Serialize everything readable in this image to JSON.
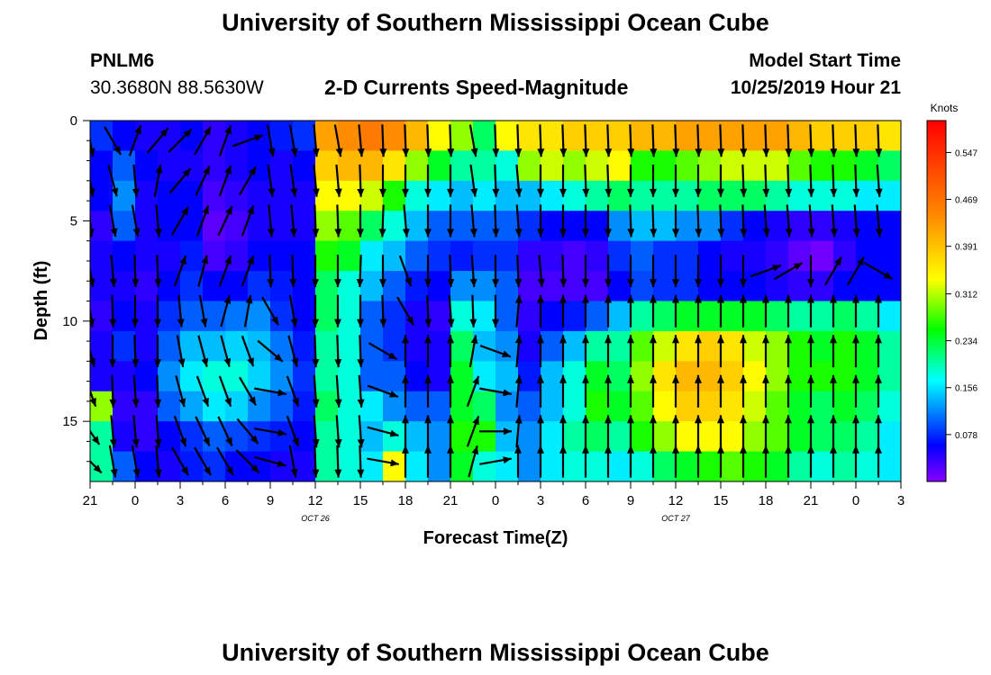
{
  "header": {
    "title": "University of Southern Mississippi Ocean Cube",
    "station": "PNLM6",
    "coords": "30.3680N 88.5630W",
    "plot_title": "2-D Currents Speed-Magnitude",
    "model_start_label": "Model Start Time",
    "model_start_value": "10/25/2019 Hour 21"
  },
  "footer": {
    "title": "University of Southern Mississippi Ocean Cube"
  },
  "chart_data": {
    "type": "heatmap",
    "title": "2-D Currents Speed-Magnitude",
    "xlabel": "Forecast Time(Z)",
    "ylabel": "Depth (ft)",
    "x_ticks": [
      "21",
      "0",
      "3",
      "6",
      "9",
      "12",
      "15",
      "18",
      "21",
      "0",
      "3",
      "6",
      "9",
      "12",
      "15",
      "18",
      "21",
      "0",
      "3"
    ],
    "x_hours": [
      0,
      3,
      6,
      9,
      12,
      15,
      18,
      21,
      24,
      27,
      30,
      33,
      36,
      39,
      42,
      45,
      48,
      51,
      54
    ],
    "x_range_hours": [
      0,
      54
    ],
    "date_labels": [
      {
        "text": "OCT 26",
        "hour": 15
      },
      {
        "text": "OCT 27",
        "hour": 39
      }
    ],
    "y_ticks": [
      "0",
      "5",
      "10",
      "15"
    ],
    "y_values": [
      0,
      5,
      10,
      15
    ],
    "y_range": [
      0,
      18
    ],
    "y_inverted": true,
    "colorbar": {
      "unit": "Knots",
      "ticks": [
        "0.547",
        "0.469",
        "0.391",
        "0.312",
        "0.234",
        "0.156",
        "0.078"
      ],
      "tick_values": [
        0.547,
        0.469,
        0.391,
        0.312,
        0.234,
        0.156,
        0.078
      ],
      "range": [
        0,
        0.6
      ],
      "colormap": [
        "#8800ff",
        "#0000ff",
        "#00ffff",
        "#00ff00",
        "#ffff00",
        "#ff8800",
        "#ff0000"
      ]
    },
    "grid_hours": [
      0,
      1.5,
      3,
      4.5,
      6,
      7.5,
      9,
      10.5,
      12,
      13.5,
      15,
      16.5,
      18,
      19.5,
      21,
      22.5,
      24,
      25.5,
      27,
      28.5,
      30,
      31.5,
      33,
      34.5,
      36,
      37.5,
      39,
      40.5,
      42,
      43.5,
      45,
      46.5,
      48,
      49.5,
      51,
      52.5
    ],
    "grid_depths": [
      0,
      1.5,
      3,
      4.5,
      6,
      7.5,
      9,
      10.5,
      12,
      13.5,
      15,
      16.5
    ],
    "speed_grid": [
      [
        0.08,
        0.06,
        0.06,
        0.04,
        0.05,
        0.05,
        0.04,
        0.05,
        0.05,
        0.3,
        0.2,
        0.2
      ],
      [
        0.06,
        0.1,
        0.12,
        0.1,
        0.06,
        0.05,
        0.06,
        0.08,
        0.05,
        0.04,
        0.05,
        0.1
      ],
      [
        0.05,
        0.06,
        0.05,
        0.05,
        0.05,
        0.04,
        0.05,
        0.05,
        0.06,
        0.04,
        0.04,
        0.06
      ],
      [
        0.05,
        0.05,
        0.06,
        0.06,
        0.05,
        0.06,
        0.08,
        0.1,
        0.12,
        0.1,
        0.06,
        0.05
      ],
      [
        0.06,
        0.05,
        0.06,
        0.06,
        0.07,
        0.08,
        0.1,
        0.14,
        0.16,
        0.13,
        0.08,
        0.07
      ],
      [
        0.04,
        0.04,
        0.03,
        0.02,
        0.03,
        0.06,
        0.1,
        0.14,
        0.18,
        0.16,
        0.1,
        0.08
      ],
      [
        0.05,
        0.05,
        0.04,
        0.03,
        0.04,
        0.06,
        0.11,
        0.15,
        0.18,
        0.15,
        0.09,
        0.06
      ],
      [
        0.06,
        0.06,
        0.05,
        0.05,
        0.06,
        0.08,
        0.12,
        0.14,
        0.15,
        0.12,
        0.08,
        0.06
      ],
      [
        0.07,
        0.05,
        0.05,
        0.05,
        0.06,
        0.07,
        0.08,
        0.11,
        0.12,
        0.1,
        0.07,
        0.05
      ],
      [
        0.08,
        0.06,
        0.05,
        0.05,
        0.06,
        0.06,
        0.06,
        0.07,
        0.08,
        0.07,
        0.06,
        0.05
      ],
      [
        0.42,
        0.38,
        0.34,
        0.3,
        0.26,
        0.22,
        0.22,
        0.2,
        0.2,
        0.22,
        0.2,
        0.2
      ],
      [
        0.44,
        0.4,
        0.34,
        0.28,
        0.24,
        0.18,
        0.18,
        0.18,
        0.18,
        0.18,
        0.18,
        0.18
      ],
      [
        0.46,
        0.4,
        0.32,
        0.22,
        0.16,
        0.14,
        0.1,
        0.1,
        0.1,
        0.16,
        0.14,
        0.16
      ],
      [
        0.44,
        0.36,
        0.26,
        0.18,
        0.14,
        0.1,
        0.08,
        0.08,
        0.1,
        0.12,
        0.18,
        0.34
      ],
      [
        0.4,
        0.3,
        0.18,
        0.14,
        0.1,
        0.07,
        0.05,
        0.05,
        0.06,
        0.1,
        0.14,
        0.16
      ],
      [
        0.34,
        0.24,
        0.16,
        0.1,
        0.08,
        0.06,
        0.04,
        0.05,
        0.05,
        0.1,
        0.12,
        0.12
      ],
      [
        0.3,
        0.2,
        0.14,
        0.1,
        0.07,
        0.12,
        0.18,
        0.22,
        0.24,
        0.24,
        0.26,
        0.24
      ],
      [
        0.22,
        0.2,
        0.16,
        0.1,
        0.08,
        0.12,
        0.16,
        0.14,
        0.16,
        0.22,
        0.26,
        0.18
      ],
      [
        0.34,
        0.18,
        0.14,
        0.1,
        0.08,
        0.1,
        0.1,
        0.12,
        0.14,
        0.12,
        0.14,
        0.16
      ],
      [
        0.36,
        0.3,
        0.14,
        0.08,
        0.04,
        0.03,
        0.04,
        0.05,
        0.07,
        0.1,
        0.12,
        0.12
      ],
      [
        0.36,
        0.32,
        0.16,
        0.06,
        0.04,
        0.03,
        0.06,
        0.1,
        0.14,
        0.14,
        0.16,
        0.16
      ],
      [
        0.38,
        0.3,
        0.18,
        0.06,
        0.03,
        0.03,
        0.07,
        0.14,
        0.18,
        0.18,
        0.2,
        0.18
      ],
      [
        0.38,
        0.32,
        0.2,
        0.06,
        0.04,
        0.03,
        0.1,
        0.2,
        0.24,
        0.26,
        0.22,
        0.18
      ],
      [
        0.38,
        0.34,
        0.22,
        0.12,
        0.08,
        0.06,
        0.14,
        0.2,
        0.22,
        0.24,
        0.2,
        0.16
      ],
      [
        0.4,
        0.26,
        0.2,
        0.14,
        0.1,
        0.09,
        0.2,
        0.28,
        0.3,
        0.28,
        0.26,
        0.18
      ],
      [
        0.4,
        0.26,
        0.2,
        0.14,
        0.08,
        0.08,
        0.22,
        0.32,
        0.36,
        0.34,
        0.3,
        0.22
      ],
      [
        0.42,
        0.28,
        0.2,
        0.12,
        0.08,
        0.08,
        0.24,
        0.36,
        0.4,
        0.38,
        0.34,
        0.24
      ],
      [
        0.42,
        0.3,
        0.22,
        0.12,
        0.06,
        0.06,
        0.24,
        0.38,
        0.4,
        0.38,
        0.34,
        0.26
      ],
      [
        0.42,
        0.32,
        0.22,
        0.08,
        0.05,
        0.06,
        0.24,
        0.36,
        0.38,
        0.36,
        0.34,
        0.28
      ],
      [
        0.42,
        0.32,
        0.22,
        0.06,
        0.05,
        0.06,
        0.24,
        0.32,
        0.34,
        0.32,
        0.3,
        0.26
      ],
      [
        0.42,
        0.32,
        0.2,
        0.05,
        0.04,
        0.05,
        0.22,
        0.3,
        0.3,
        0.28,
        0.28,
        0.24
      ],
      [
        0.4,
        0.28,
        0.18,
        0.04,
        0.02,
        0.04,
        0.2,
        0.26,
        0.26,
        0.24,
        0.24,
        0.2
      ],
      [
        0.38,
        0.26,
        0.18,
        0.04,
        0.01,
        0.04,
        0.2,
        0.24,
        0.26,
        0.22,
        0.22,
        0.18
      ],
      [
        0.38,
        0.26,
        0.18,
        0.05,
        0.04,
        0.06,
        0.22,
        0.26,
        0.26,
        0.24,
        0.22,
        0.2
      ],
      [
        0.38,
        0.24,
        0.16,
        0.06,
        0.06,
        0.06,
        0.2,
        0.24,
        0.24,
        0.22,
        0.2,
        0.18
      ],
      [
        0.36,
        0.22,
        0.16,
        0.06,
        0.06,
        0.06,
        0.16,
        0.2,
        0.2,
        0.18,
        0.16,
        0.16
      ]
    ],
    "arrows_hours": [
      0,
      1.5,
      3,
      4.5,
      6,
      7.5,
      9,
      10.5,
      12,
      13.5,
      15,
      16.5,
      18,
      19.5,
      21,
      22.5,
      24,
      25.5,
      27,
      28.5,
      30,
      31.5,
      33,
      34.5,
      36,
      37.5,
      39,
      40.5,
      42,
      43.5,
      45,
      46.5,
      48,
      49.5,
      51,
      52.5
    ],
    "arrows_depths": [
      1,
      3,
      5,
      7.5,
      9.5,
      11.5,
      13.5,
      15.5,
      17
    ],
    "direction_deg": [
      [
        170,
        170,
        175,
        170,
        172,
        165,
        160,
        145,
        135
      ],
      [
        150,
        165,
        170,
        175,
        178,
        180,
        178,
        175,
        170
      ],
      [
        20,
        175,
        170,
        178,
        180,
        178,
        176,
        175,
        170
      ],
      [
        40,
        10,
        175,
        178,
        180,
        180,
        178,
        176,
        175
      ],
      [
        45,
        40,
        30,
        20,
        175,
        170,
        165,
        160,
        150
      ],
      [
        30,
        25,
        20,
        15,
        170,
        165,
        160,
        155,
        150
      ],
      [
        20,
        20,
        25,
        20,
        15,
        165,
        160,
        155,
        150
      ],
      [
        70,
        30,
        20,
        20,
        10,
        160,
        150,
        140,
        135
      ],
      [
        170,
        172,
        175,
        178,
        150,
        130,
        100,
        100,
        105
      ],
      [
        170,
        172,
        175,
        178,
        170,
        165,
        160,
        160,
        170
      ],
      [
        175,
        175,
        178,
        180,
        180,
        178,
        176,
        176,
        178
      ],
      [
        170,
        175,
        178,
        180,
        180,
        178,
        176,
        176,
        178
      ],
      [
        175,
        178,
        180,
        182,
        180,
        178,
        176,
        176,
        178
      ],
      [
        178,
        180,
        182,
        180,
        178,
        120,
        110,
        105,
        100
      ],
      [
        178,
        180,
        175,
        160,
        150,
        0,
        0,
        0,
        0
      ],
      [
        178,
        180,
        180,
        180,
        178,
        0,
        0,
        0,
        0
      ],
      [
        178,
        180,
        180,
        178,
        176,
        0,
        0,
        0,
        0
      ],
      [
        170,
        172,
        175,
        176,
        178,
        10,
        20,
        20,
        15
      ],
      [
        178,
        178,
        178,
        180,
        180,
        110,
        100,
        90,
        80
      ],
      [
        178,
        175,
        176,
        178,
        5,
        5,
        5,
        5,
        0
      ],
      [
        178,
        180,
        180,
        175,
        0,
        0,
        0,
        0,
        0
      ],
      [
        178,
        180,
        180,
        178,
        0,
        0,
        0,
        0,
        0
      ],
      [
        178,
        178,
        180,
        180,
        0,
        0,
        0,
        0,
        0
      ],
      [
        178,
        178,
        180,
        180,
        0,
        0,
        0,
        0,
        0
      ],
      [
        178,
        180,
        178,
        180,
        0,
        0,
        0,
        0,
        0
      ],
      [
        178,
        180,
        178,
        180,
        0,
        0,
        0,
        0,
        0
      ],
      [
        178,
        180,
        180,
        180,
        0,
        0,
        0,
        0,
        0
      ],
      [
        178,
        180,
        178,
        180,
        0,
        0,
        0,
        0,
        0
      ],
      [
        178,
        180,
        178,
        180,
        0,
        0,
        0,
        0,
        0
      ],
      [
        178,
        178,
        178,
        180,
        0,
        0,
        0,
        0,
        0
      ],
      [
        178,
        178,
        176,
        70,
        0,
        0,
        0,
        0,
        0
      ],
      [
        178,
        178,
        176,
        60,
        0,
        0,
        0,
        0,
        0
      ],
      [
        178,
        178,
        176,
        180,
        0,
        0,
        0,
        0,
        0
      ],
      [
        178,
        178,
        176,
        30,
        0,
        0,
        0,
        0,
        0
      ],
      [
        178,
        178,
        176,
        30,
        0,
        0,
        0,
        0,
        0
      ],
      [
        178,
        176,
        175,
        120,
        0,
        0,
        0,
        0,
        0
      ]
    ]
  }
}
